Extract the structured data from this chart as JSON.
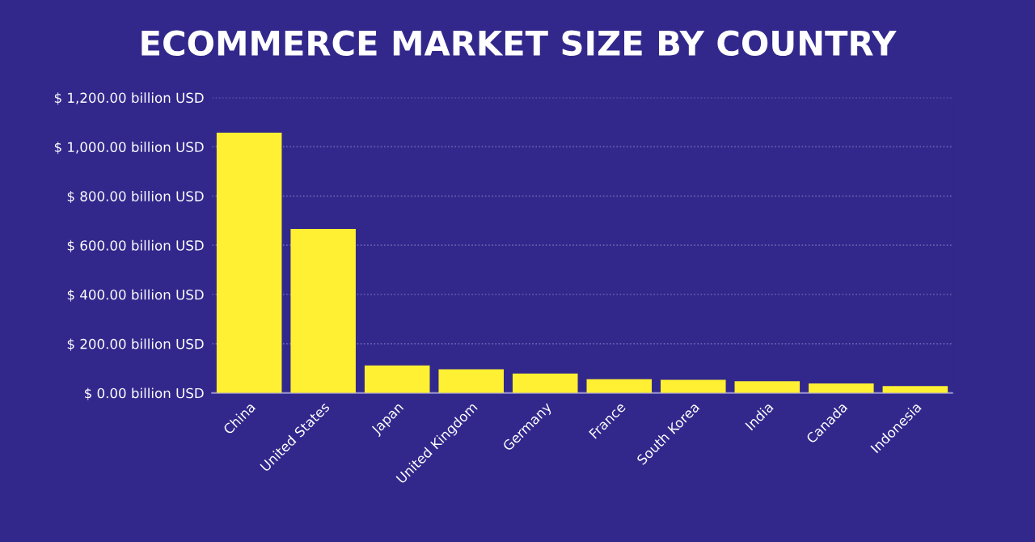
{
  "chart_data": {
    "type": "bar",
    "title": "ECOMMERCE MARKET SIZE BY COUNTRY",
    "categories": [
      "China",
      "United States",
      "Japan",
      "United Kingdom",
      "Germany",
      "France",
      "South Korea",
      "India",
      "Canada",
      "Indonesia"
    ],
    "values": [
      1057,
      666,
      112,
      96,
      79,
      56,
      53,
      48,
      39,
      28
    ],
    "color": "#fff033",
    "ylim": [
      0,
      1200
    ],
    "yticks": [
      {
        "value": 0,
        "label": "$ 0.00 billion USD"
      },
      {
        "value": 200,
        "label": "$ 200.00 billion USD"
      },
      {
        "value": 400,
        "label": "$ 400.00 billion USD"
      },
      {
        "value": 600,
        "label": "$ 600.00 billion USD"
      },
      {
        "value": 800,
        "label": "$ 800.00 billion USD"
      },
      {
        "value": 1000,
        "label": "$ 1,000.00 billion USD"
      },
      {
        "value": 1200,
        "label": "$ 1,200.00 billion USD"
      }
    ],
    "grid": "y"
  }
}
